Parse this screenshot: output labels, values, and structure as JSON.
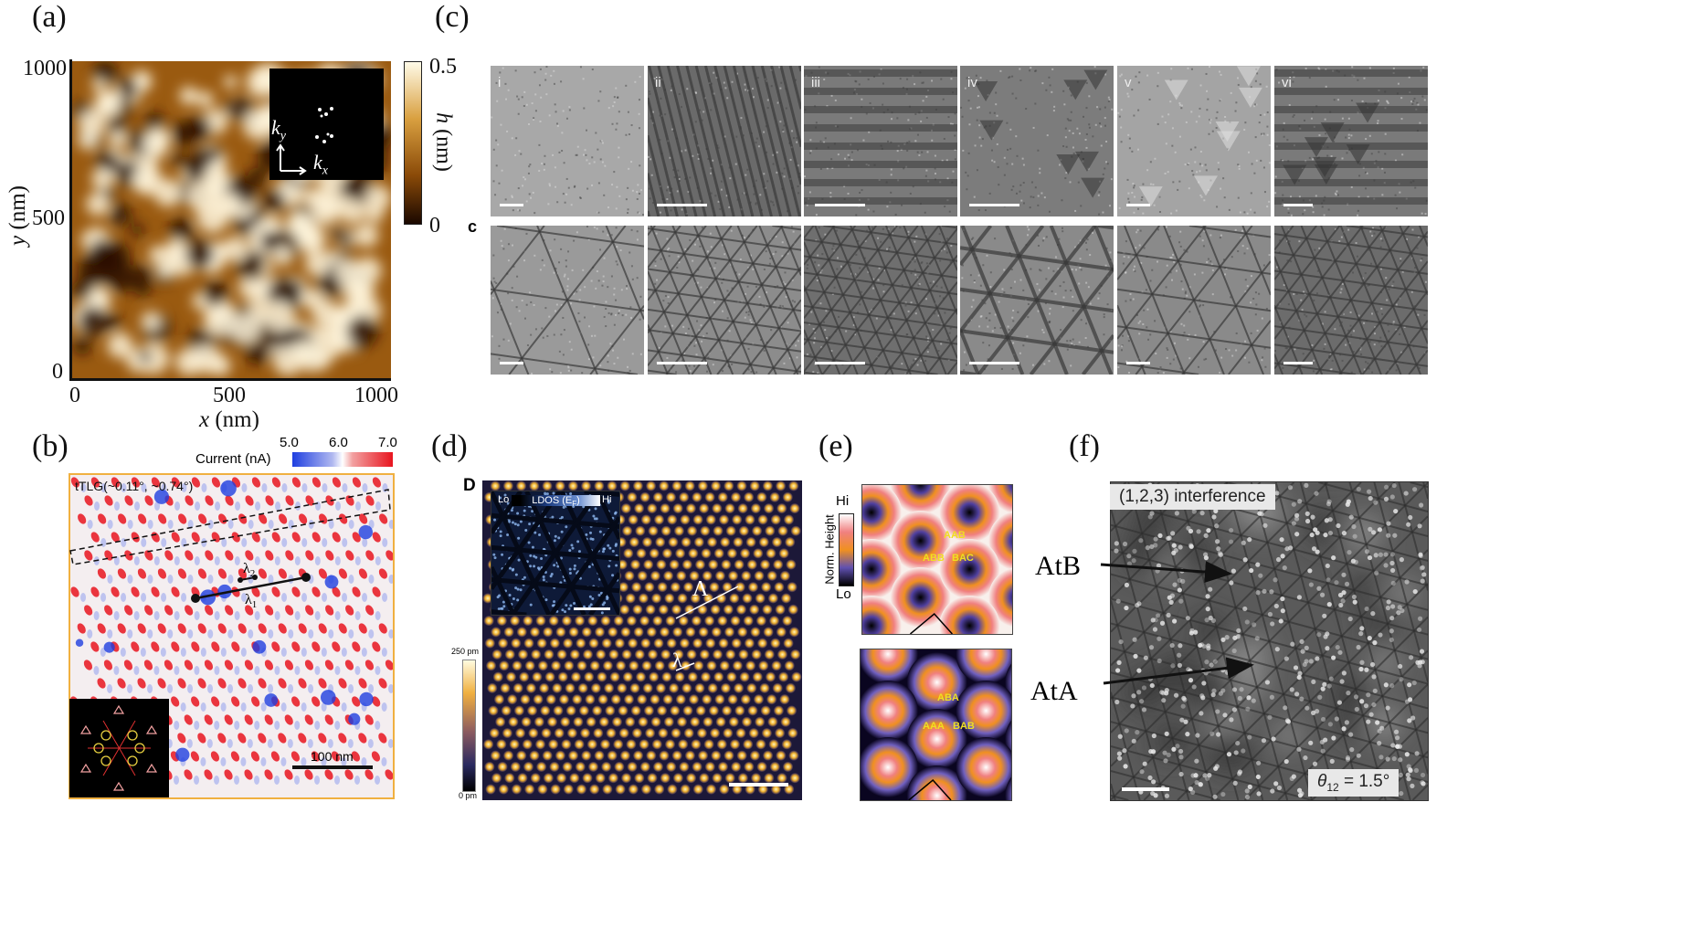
{
  "panels": {
    "a": {
      "label": "(a)",
      "xlabel": "x (nm)",
      "ylabel": "y (nm)",
      "xticks": [
        "0",
        "500",
        "1000"
      ],
      "yticks": [
        "1000",
        "500",
        "0"
      ],
      "colorbar": {
        "max": "0.5",
        "min": "0",
        "label": "h (nm)"
      },
      "inset": {
        "kx": "k",
        "kx_sub": "x",
        "ky": "k",
        "ky_sub": "y"
      },
      "colors": {
        "dark": "#2a1200",
        "mid": "#9a5a10",
        "light": "#fff6dc"
      }
    },
    "b": {
      "label": "(b)",
      "colorbar": {
        "title": "Current (nA)",
        "ticks": [
          "5.0",
          "6.0",
          "7.0"
        ]
      },
      "sample": "tTLG(~0.11°, ~0.74°)",
      "lambda1": "λ",
      "lambda1_sub": "1",
      "lambda2": "λ",
      "lambda2_sub": "2",
      "scalebar": "100 nm",
      "colors": {
        "low": "#1f3fe0",
        "high": "#e8141e",
        "border": "#f0b040"
      }
    },
    "c": {
      "label": "(c)",
      "sub_label": "c",
      "columns": [
        "i",
        "ii",
        "iii",
        "iv",
        "v",
        "vi"
      ]
    },
    "d": {
      "label": "(d)",
      "sub_label": "D",
      "inset": {
        "lo": "Lo",
        "title": "LDOS (E",
        "title_sub": "F",
        "title_end": ")",
        "hi": "Hi"
      },
      "colorbar": {
        "max": "250 pm",
        "min": "0 pm"
      },
      "big_lambda": "Λ",
      "small_lambda": "λ"
    },
    "e": {
      "label": "(e)",
      "colorbar": {
        "hi": "Hi",
        "lo": "Lo",
        "title": "Norm. Height"
      },
      "top_labels": [
        "AAB",
        "ABB",
        "BAC"
      ],
      "bottom_labels": [
        "ABA",
        "AAA",
        "BAB"
      ]
    },
    "f": {
      "label": "(f)",
      "title": "(1,2,3) interference",
      "angle": "θ",
      "angle_sub": "12",
      "angle_value": " = 1.5°",
      "annotations": [
        "AtB",
        "AtA"
      ]
    }
  }
}
